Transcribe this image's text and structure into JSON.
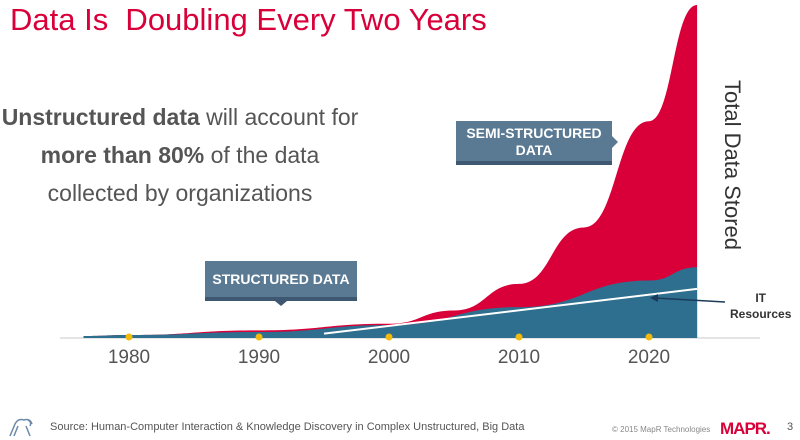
{
  "title": "Data Is  Doubling Every Two Years",
  "claim": {
    "part1": "Unstructured data",
    "part2": " will account for ",
    "part3": "more than 80%",
    "part4": " of the data collected by organizations"
  },
  "chart_data": {
    "type": "area",
    "ylabel": "Total Data Stored",
    "x_ticks": [
      "1980",
      "1990",
      "2000",
      "2010",
      "2020"
    ],
    "xlim": [
      1976.5,
      2023.7
    ],
    "y_note": "",
    "series": [
      {
        "name": "SEMI-STRUCTURED DATA",
        "color": "#d9003a",
        "x": [
          1976.5,
          1980,
          1990,
          2000,
          2005,
          2010,
          2015,
          2020,
          2023.7
        ],
        "values": [
          0.3,
          0.6,
          2,
          4,
          8,
          16,
          33,
          65,
          100
        ]
      },
      {
        "name": "STRUCTURED DATA",
        "color": "#2e6e8e",
        "x": [
          1976.5,
          1980,
          1990,
          2000,
          2010,
          2020,
          2023.7
        ],
        "values": [
          0.3,
          0.6,
          1.5,
          3.6,
          9,
          17,
          21
        ]
      },
      {
        "name": "IT Resources",
        "color": "#ffffff",
        "x": [
          1995,
          2023.7
        ],
        "values": [
          1,
          14.5
        ]
      }
    ],
    "grid": false,
    "legend": "inline labels"
  },
  "labels": {
    "semi": "SEMI-STRUCTURED DATA",
    "structured": "STRUCTURED DATA",
    "it_line1": "IT",
    "it_line2": "Resources"
  },
  "footer": {
    "source": "Source: Human-Computer Interaction & Knowledge Discovery in Complex Unstructured, Big Data",
    "copyright": "© 2015 MapR Technologies",
    "logo": "MAPR.",
    "page": "3"
  }
}
